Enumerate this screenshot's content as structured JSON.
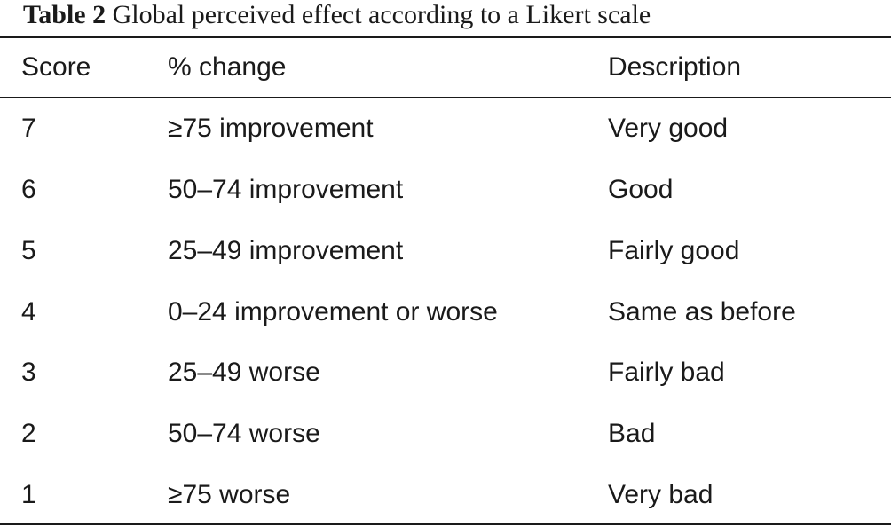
{
  "caption": {
    "label": "Table 2",
    "text": "Global perceived effect according to a Likert scale"
  },
  "table": {
    "headers": [
      "Score",
      "% change",
      "Description"
    ],
    "rows": [
      [
        "7",
        "≥75 improvement",
        "Very good"
      ],
      [
        "6",
        "50–74 improvement",
        "Good"
      ],
      [
        "5",
        "25–49 improvement",
        "Fairly good"
      ],
      [
        "4",
        "0–24 improvement or worse",
        "Same as before"
      ],
      [
        "3",
        "25–49 worse",
        "Fairly bad"
      ],
      [
        "2",
        "50–74 worse",
        "Bad"
      ],
      [
        "1",
        "≥75 worse",
        "Very bad"
      ]
    ]
  }
}
